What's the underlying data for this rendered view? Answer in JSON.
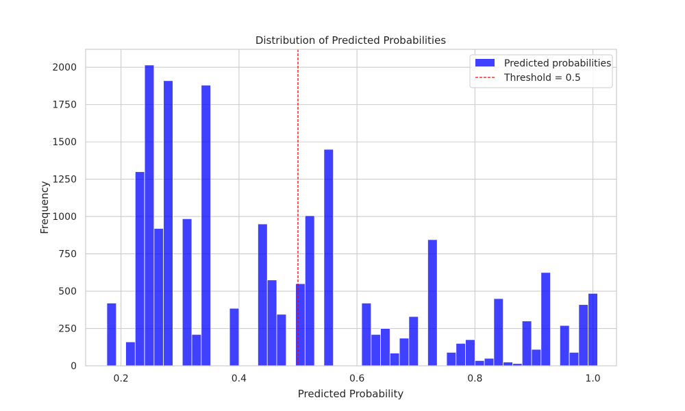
{
  "chart_data": {
    "type": "bar",
    "title": "Distribution of Predicted Probabilities",
    "xlabel": "Predicted Probability",
    "ylabel": "Frequency",
    "xlim": [
      0.14,
      1.04
    ],
    "ylim": [
      0,
      2120
    ],
    "xticks": [
      0.2,
      0.4,
      0.6,
      0.8,
      1.0
    ],
    "xtick_labels": [
      "0.2",
      "0.4",
      "0.6",
      "0.8",
      "1.0"
    ],
    "yticks": [
      0,
      250,
      500,
      750,
      1000,
      1250,
      1500,
      1750,
      2000
    ],
    "ytick_labels": [
      "0",
      "250",
      "500",
      "750",
      "1000",
      "1250",
      "1500",
      "1750",
      "2000"
    ],
    "grid": true,
    "legend_position": "top-right",
    "bin_width": 0.016,
    "series": [
      {
        "name": "Predicted probabilities",
        "color": "#0000ff",
        "bins": [
          {
            "x": 0.176,
            "value": 420
          },
          {
            "x": 0.208,
            "value": 160
          },
          {
            "x": 0.224,
            "value": 1300
          },
          {
            "x": 0.24,
            "value": 2015
          },
          {
            "x": 0.256,
            "value": 920
          },
          {
            "x": 0.272,
            "value": 1910
          },
          {
            "x": 0.304,
            "value": 985
          },
          {
            "x": 0.32,
            "value": 210
          },
          {
            "x": 0.336,
            "value": 1880
          },
          {
            "x": 0.384,
            "value": 385
          },
          {
            "x": 0.432,
            "value": 950
          },
          {
            "x": 0.448,
            "value": 575
          },
          {
            "x": 0.464,
            "value": 345
          },
          {
            "x": 0.496,
            "value": 550
          },
          {
            "x": 0.512,
            "value": 1005
          },
          {
            "x": 0.544,
            "value": 1450
          },
          {
            "x": 0.608,
            "value": 420
          },
          {
            "x": 0.624,
            "value": 210
          },
          {
            "x": 0.64,
            "value": 250
          },
          {
            "x": 0.656,
            "value": 85
          },
          {
            "x": 0.672,
            "value": 185
          },
          {
            "x": 0.688,
            "value": 330
          },
          {
            "x": 0.72,
            "value": 845
          },
          {
            "x": 0.752,
            "value": 90
          },
          {
            "x": 0.768,
            "value": 150
          },
          {
            "x": 0.784,
            "value": 175
          },
          {
            "x": 0.8,
            "value": 35
          },
          {
            "x": 0.816,
            "value": 50
          },
          {
            "x": 0.832,
            "value": 450
          },
          {
            "x": 0.848,
            "value": 25
          },
          {
            "x": 0.864,
            "value": 15
          },
          {
            "x": 0.88,
            "value": 300
          },
          {
            "x": 0.896,
            "value": 110
          },
          {
            "x": 0.912,
            "value": 625
          },
          {
            "x": 0.944,
            "value": 270
          },
          {
            "x": 0.96,
            "value": 90
          },
          {
            "x": 0.976,
            "value": 410
          },
          {
            "x": 0.992,
            "value": 485
          }
        ]
      }
    ],
    "threshold": {
      "label": "Threshold = 0.5",
      "value": 0.5,
      "color": "#ff0000"
    }
  }
}
